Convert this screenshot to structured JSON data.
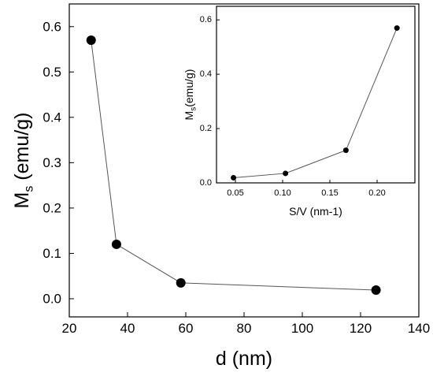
{
  "chart_data": [
    {
      "type": "line",
      "role": "main",
      "series": [
        {
          "x": [
            27.5,
            36.2,
            58.3,
            125.3
          ],
          "values": [
            0.57,
            0.12,
            0.035,
            0.019
          ]
        }
      ],
      "xlabel": "d (nm)",
      "ylabel_main": "M",
      "ylabel_sub": "s",
      "ylabel_unit": " (emu/g)",
      "xlim": [
        20,
        140
      ],
      "ylim": [
        -0.04,
        0.65
      ],
      "xticks": [
        20,
        40,
        60,
        80,
        100,
        120,
        140
      ],
      "yticks": [
        0.0,
        0.1,
        0.2,
        0.3,
        0.4,
        0.5,
        0.6
      ],
      "xtick_labels": [
        "20",
        "40",
        "60",
        "80",
        "100",
        "120",
        "140"
      ],
      "ytick_labels": [
        "0.0",
        "0.1",
        "0.2",
        "0.3",
        "0.4",
        "0.5",
        "0.6"
      ],
      "grid": false,
      "marker": "filled-circle",
      "line_color": "#555555",
      "marker_color": "#000000"
    },
    {
      "type": "line",
      "role": "inset",
      "series": [
        {
          "x": [
            0.048,
            0.103,
            0.167,
            0.221
          ],
          "values": [
            0.019,
            0.035,
            0.12,
            0.57
          ]
        }
      ],
      "xlabel": "S/V (nm-1)",
      "ylabel_main": "M",
      "ylabel_sub": "s",
      "ylabel_unit": "(emu/g)",
      "xlim": [
        0.03,
        0.24
      ],
      "ylim": [
        0.0,
        0.65
      ],
      "xticks": [
        0.05,
        0.1,
        0.15,
        0.2
      ],
      "yticks": [
        0.0,
        0.2,
        0.4,
        0.6
      ],
      "xtick_labels": [
        "0.05",
        "0.10",
        "0.15",
        "0.20"
      ],
      "ytick_labels": [
        "0.0",
        "0.2",
        "0.4",
        "0.6"
      ],
      "grid": false,
      "marker": "filled-circle",
      "line_color": "#555555",
      "marker_color": "#000000"
    }
  ]
}
